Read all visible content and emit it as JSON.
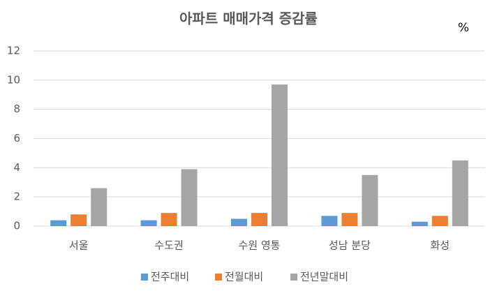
{
  "chart_data": {
    "type": "bar",
    "title": "아파트 매매가격 증감률",
    "y_unit": "%",
    "categories": [
      "서울",
      "수도권",
      "수원 영통",
      "성남 분당",
      "화성"
    ],
    "series": [
      {
        "name": "전주대비",
        "color": "#5b9bd5",
        "values": [
          0.4,
          0.4,
          0.5,
          0.7,
          0.3
        ]
      },
      {
        "name": "전월대비",
        "color": "#ed7d31",
        "values": [
          0.8,
          0.9,
          0.9,
          0.9,
          0.7
        ]
      },
      {
        "name": "전년말대비",
        "color": "#a5a5a5",
        "values": [
          2.6,
          3.9,
          9.7,
          3.5,
          4.5
        ]
      }
    ],
    "ylim": [
      0,
      12
    ],
    "yticks": [
      0,
      2,
      4,
      6,
      8,
      10,
      12
    ],
    "grid": true,
    "legend": "bottom"
  }
}
